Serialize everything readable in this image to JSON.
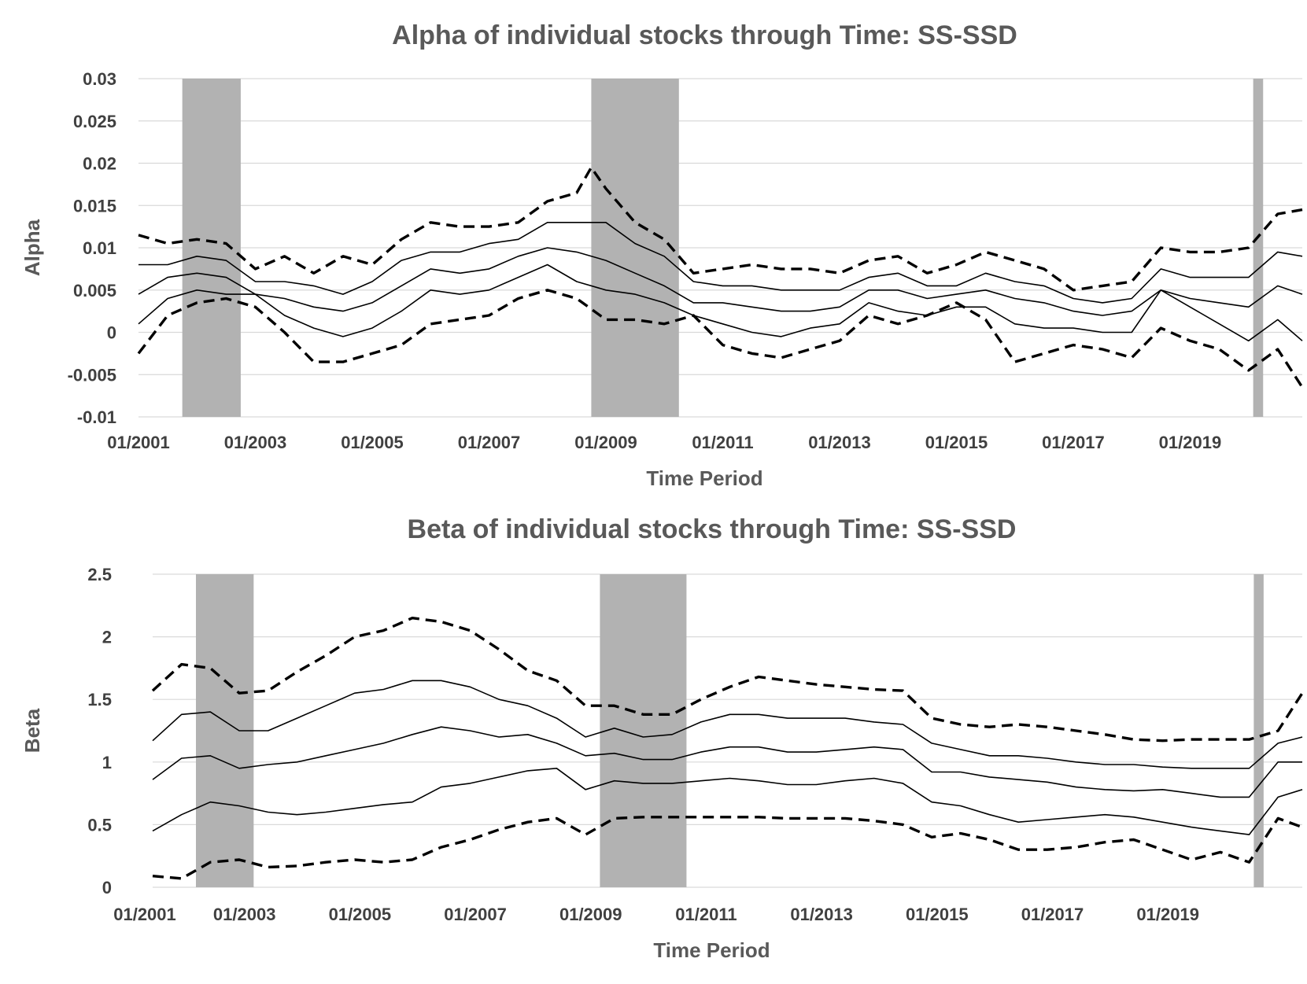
{
  "chart_data": [
    {
      "type": "line",
      "title": "Alpha of individual stocks through Time: SS-SSD",
      "xlabel": "Time Period",
      "ylabel": "Alpha",
      "ylim": [
        -0.01,
        0.03
      ],
      "yticks": [
        0.03,
        0.025,
        0.02,
        0.015,
        0.01,
        0.005,
        0,
        -0.005,
        -0.01
      ],
      "ytick_labels": [
        "0.03",
        "0.025",
        "0.02",
        "0.015",
        "0.01",
        "0.005",
        "0",
        "-0.005",
        "-0.01"
      ],
      "xlim": [
        2001.0,
        2020.92
      ],
      "xticks": [
        2001,
        2003,
        2005,
        2007,
        2009,
        2011,
        2013,
        2015,
        2017,
        2019
      ],
      "xtick_labels": [
        "01/2001",
        "01/2003",
        "01/2005",
        "01/2007",
        "01/2009",
        "01/2011",
        "01/2013",
        "01/2015",
        "01/2017",
        "01/2019"
      ],
      "grid": true,
      "recession_shading": [
        [
          2001.75,
          2002.75
        ],
        [
          2008.75,
          2010.25
        ],
        [
          2020.08,
          2020.25
        ]
      ],
      "series": [
        {
          "name": "upper dashed",
          "style": "dashed",
          "x": [
            2001.0,
            2001.5,
            2002.0,
            2002.5,
            2003.0,
            2003.5,
            2004.0,
            2004.5,
            2005.0,
            2005.5,
            2006.0,
            2006.5,
            2007.0,
            2007.5,
            2008.0,
            2008.5,
            2008.75,
            2009.0,
            2009.5,
            2010.0,
            2010.5,
            2011.0,
            2011.5,
            2012.0,
            2012.5,
            2013.0,
            2013.5,
            2014.0,
            2014.5,
            2015.0,
            2015.5,
            2016.0,
            2016.5,
            2017.0,
            2017.5,
            2018.0,
            2018.5,
            2019.0,
            2019.5,
            2020.0,
            2020.5,
            2020.92
          ],
          "values": [
            0.0115,
            0.0105,
            0.011,
            0.0105,
            0.0075,
            0.009,
            0.007,
            0.009,
            0.008,
            0.011,
            0.013,
            0.0125,
            0.0125,
            0.013,
            0.0155,
            0.0165,
            0.0195,
            0.017,
            0.013,
            0.011,
            0.007,
            0.0075,
            0.008,
            0.0075,
            0.0075,
            0.007,
            0.0085,
            0.009,
            0.007,
            0.008,
            0.0095,
            0.0085,
            0.0075,
            0.005,
            0.0055,
            0.006,
            0.01,
            0.0095,
            0.0095,
            0.01,
            0.014,
            0.0145
          ]
        },
        {
          "name": "upper solid",
          "style": "solid",
          "x": [
            2001.0,
            2001.5,
            2002.0,
            2002.5,
            2003.0,
            2003.5,
            2004.0,
            2004.5,
            2005.0,
            2005.5,
            2006.0,
            2006.5,
            2007.0,
            2007.5,
            2008.0,
            2008.5,
            2009.0,
            2009.5,
            2010.0,
            2010.5,
            2011.0,
            2011.5,
            2012.0,
            2012.5,
            2013.0,
            2013.5,
            2014.0,
            2014.5,
            2015.0,
            2015.5,
            2016.0,
            2016.5,
            2017.0,
            2017.5,
            2018.0,
            2018.5,
            2019.0,
            2019.5,
            2020.0,
            2020.5,
            2020.92
          ],
          "values": [
            0.008,
            0.008,
            0.009,
            0.0085,
            0.006,
            0.006,
            0.0055,
            0.0045,
            0.006,
            0.0085,
            0.0095,
            0.0095,
            0.0105,
            0.011,
            0.013,
            0.013,
            0.013,
            0.0105,
            0.009,
            0.006,
            0.0055,
            0.0055,
            0.005,
            0.005,
            0.005,
            0.0065,
            0.007,
            0.0055,
            0.0055,
            0.007,
            0.006,
            0.0055,
            0.004,
            0.0035,
            0.004,
            0.0075,
            0.0065,
            0.0065,
            0.0065,
            0.0095,
            0.009
          ]
        },
        {
          "name": "median solid",
          "style": "solid",
          "x": [
            2001.0,
            2001.5,
            2002.0,
            2002.5,
            2003.0,
            2003.5,
            2004.0,
            2004.5,
            2005.0,
            2005.5,
            2006.0,
            2006.5,
            2007.0,
            2007.5,
            2008.0,
            2008.5,
            2009.0,
            2009.5,
            2010.0,
            2010.5,
            2011.0,
            2011.5,
            2012.0,
            2012.5,
            2013.0,
            2013.5,
            2014.0,
            2014.5,
            2015.0,
            2015.5,
            2016.0,
            2016.5,
            2017.0,
            2017.5,
            2018.0,
            2018.5,
            2019.0,
            2019.5,
            2020.0,
            2020.5,
            2020.92
          ],
          "values": [
            0.0045,
            0.0065,
            0.007,
            0.0065,
            0.0045,
            0.004,
            0.003,
            0.0025,
            0.0035,
            0.0055,
            0.0075,
            0.007,
            0.0075,
            0.009,
            0.01,
            0.0095,
            0.0085,
            0.007,
            0.0055,
            0.0035,
            0.0035,
            0.003,
            0.0025,
            0.0025,
            0.003,
            0.005,
            0.005,
            0.004,
            0.0045,
            0.005,
            0.004,
            0.0035,
            0.0025,
            0.002,
            0.0025,
            0.005,
            0.004,
            0.0035,
            0.003,
            0.0055,
            0.0045
          ]
        },
        {
          "name": "lower solid",
          "style": "solid",
          "x": [
            2001.0,
            2001.5,
            2002.0,
            2002.5,
            2003.0,
            2003.5,
            2004.0,
            2004.5,
            2005.0,
            2005.5,
            2006.0,
            2006.5,
            2007.0,
            2007.5,
            2008.0,
            2008.5,
            2009.0,
            2009.5,
            2010.0,
            2010.5,
            2011.0,
            2011.5,
            2012.0,
            2012.5,
            2013.0,
            2013.5,
            2014.0,
            2014.5,
            2015.0,
            2015.5,
            2016.0,
            2016.5,
            2017.0,
            2017.5,
            2018.0,
            2018.5,
            2019.0,
            2019.5,
            2020.0,
            2020.5,
            2020.92
          ],
          "values": [
            0.001,
            0.004,
            0.005,
            0.0045,
            0.0045,
            0.002,
            0.0005,
            -0.0005,
            0.0005,
            0.0025,
            0.005,
            0.0045,
            0.005,
            0.0065,
            0.008,
            0.006,
            0.005,
            0.0045,
            0.0035,
            0.002,
            0.001,
            0.0,
            -0.0005,
            0.0005,
            0.001,
            0.0035,
            0.0025,
            0.002,
            0.003,
            0.003,
            0.001,
            0.0005,
            0.0005,
            0.0,
            0.0,
            0.005,
            0.003,
            0.001,
            -0.001,
            0.0015,
            -0.001
          ]
        },
        {
          "name": "lower dashed",
          "style": "dashed",
          "x": [
            2001.0,
            2001.5,
            2002.0,
            2002.5,
            2003.0,
            2003.5,
            2004.0,
            2004.5,
            2005.0,
            2005.5,
            2006.0,
            2006.5,
            2007.0,
            2007.5,
            2008.0,
            2008.5,
            2009.0,
            2009.5,
            2010.0,
            2010.5,
            2011.0,
            2011.5,
            2012.0,
            2012.5,
            2013.0,
            2013.5,
            2014.0,
            2014.5,
            2015.0,
            2015.5,
            2016.0,
            2016.5,
            2017.0,
            2017.5,
            2018.0,
            2018.5,
            2019.0,
            2019.5,
            2020.0,
            2020.5,
            2020.92
          ],
          "values": [
            -0.0025,
            0.002,
            0.0035,
            0.004,
            0.003,
            0.0,
            -0.0035,
            -0.0035,
            -0.0025,
            -0.0015,
            0.001,
            0.0015,
            0.002,
            0.004,
            0.005,
            0.004,
            0.0015,
            0.0015,
            0.001,
            0.002,
            -0.0015,
            -0.0025,
            -0.003,
            -0.002,
            -0.001,
            0.002,
            0.001,
            0.002,
            0.0035,
            0.0015,
            -0.0035,
            -0.0025,
            -0.0015,
            -0.002,
            -0.003,
            0.0005,
            -0.001,
            -0.002,
            -0.0045,
            -0.002,
            -0.0065
          ]
        }
      ]
    },
    {
      "type": "line",
      "title": "Beta of individual stocks through Time: SS-SSD",
      "xlabel": "Time Period",
      "ylabel": "Beta",
      "ylim": [
        0,
        2.5
      ],
      "yticks": [
        2.5,
        2,
        1.5,
        1,
        0.5,
        0
      ],
      "ytick_labels": [
        "2.5",
        "2",
        "1.5",
        "1",
        "0.5",
        "0"
      ],
      "xlim": [
        2001.0,
        2020.92
      ],
      "xticks": [
        2001,
        2003,
        2005,
        2007,
        2009,
        2011,
        2013,
        2015,
        2017,
        2019
      ],
      "xtick_labels": [
        "01/2001",
        "01/2003",
        "01/2005",
        "01/2007",
        "01/2009",
        "01/2011",
        "01/2013",
        "01/2015",
        "01/2017",
        "01/2019"
      ],
      "grid": true,
      "recession_shading": [
        [
          2001.75,
          2002.75
        ],
        [
          2008.75,
          2010.25
        ],
        [
          2020.08,
          2020.25
        ]
      ],
      "series": [
        {
          "name": "upper dashed",
          "style": "dashed",
          "x": [
            2001.0,
            2001.5,
            2002.0,
            2002.5,
            2003.0,
            2003.5,
            2004.0,
            2004.5,
            2005.0,
            2005.5,
            2006.0,
            2006.5,
            2007.0,
            2007.5,
            2008.0,
            2008.5,
            2009.0,
            2009.5,
            2010.0,
            2010.5,
            2011.0,
            2011.5,
            2012.0,
            2012.5,
            2013.0,
            2013.5,
            2014.0,
            2014.5,
            2015.0,
            2015.5,
            2016.0,
            2016.5,
            2017.0,
            2017.5,
            2018.0,
            2018.5,
            2019.0,
            2019.5,
            2020.0,
            2020.5,
            2020.92
          ],
          "values": [
            1.57,
            1.78,
            1.75,
            1.55,
            1.57,
            1.72,
            1.85,
            2.0,
            2.05,
            2.15,
            2.12,
            2.05,
            1.9,
            1.73,
            1.65,
            1.45,
            1.45,
            1.38,
            1.38,
            1.5,
            1.6,
            1.68,
            1.65,
            1.62,
            1.6,
            1.58,
            1.57,
            1.35,
            1.3,
            1.28,
            1.3,
            1.28,
            1.25,
            1.22,
            1.18,
            1.17,
            1.18,
            1.18,
            1.18,
            1.25,
            1.55
          ]
        },
        {
          "name": "upper solid",
          "style": "solid",
          "x": [
            2001.0,
            2001.5,
            2002.0,
            2002.5,
            2003.0,
            2003.5,
            2004.0,
            2004.5,
            2005.0,
            2005.5,
            2006.0,
            2006.5,
            2007.0,
            2007.5,
            2008.0,
            2008.5,
            2009.0,
            2009.5,
            2010.0,
            2010.5,
            2011.0,
            2011.5,
            2012.0,
            2012.5,
            2013.0,
            2013.5,
            2014.0,
            2014.5,
            2015.0,
            2015.5,
            2016.0,
            2016.5,
            2017.0,
            2017.5,
            2018.0,
            2018.5,
            2019.0,
            2019.5,
            2020.0,
            2020.5,
            2020.92
          ],
          "values": [
            1.17,
            1.38,
            1.4,
            1.25,
            1.25,
            1.35,
            1.45,
            1.55,
            1.58,
            1.65,
            1.65,
            1.6,
            1.5,
            1.45,
            1.35,
            1.2,
            1.27,
            1.2,
            1.22,
            1.32,
            1.38,
            1.38,
            1.35,
            1.35,
            1.35,
            1.32,
            1.3,
            1.15,
            1.1,
            1.05,
            1.05,
            1.03,
            1.0,
            0.98,
            0.98,
            0.96,
            0.95,
            0.95,
            0.95,
            1.15,
            1.2
          ]
        },
        {
          "name": "median solid",
          "style": "solid",
          "x": [
            2001.0,
            2001.5,
            2002.0,
            2002.5,
            2003.0,
            2003.5,
            2004.0,
            2004.5,
            2005.0,
            2005.5,
            2006.0,
            2006.5,
            2007.0,
            2007.5,
            2008.0,
            2008.5,
            2009.0,
            2009.5,
            2010.0,
            2010.5,
            2011.0,
            2011.5,
            2012.0,
            2012.5,
            2013.0,
            2013.5,
            2014.0,
            2014.5,
            2015.0,
            2015.5,
            2016.0,
            2016.5,
            2017.0,
            2017.5,
            2018.0,
            2018.5,
            2019.0,
            2019.5,
            2020.0,
            2020.5,
            2020.92
          ],
          "values": [
            0.86,
            1.03,
            1.05,
            0.95,
            0.98,
            1.0,
            1.05,
            1.1,
            1.15,
            1.22,
            1.28,
            1.25,
            1.2,
            1.22,
            1.15,
            1.05,
            1.07,
            1.02,
            1.02,
            1.08,
            1.12,
            1.12,
            1.08,
            1.08,
            1.1,
            1.12,
            1.1,
            0.92,
            0.92,
            0.88,
            0.86,
            0.84,
            0.8,
            0.78,
            0.77,
            0.78,
            0.75,
            0.72,
            0.72,
            1.0,
            1.0
          ]
        },
        {
          "name": "lower solid",
          "style": "solid",
          "x": [
            2001.0,
            2001.5,
            2002.0,
            2002.5,
            2003.0,
            2003.5,
            2004.0,
            2004.5,
            2005.0,
            2005.5,
            2006.0,
            2006.5,
            2007.0,
            2007.5,
            2008.0,
            2008.5,
            2009.0,
            2009.5,
            2010.0,
            2010.5,
            2011.0,
            2011.5,
            2012.0,
            2012.5,
            2013.0,
            2013.5,
            2014.0,
            2014.5,
            2015.0,
            2015.5,
            2016.0,
            2016.5,
            2017.0,
            2017.5,
            2018.0,
            2018.5,
            2019.0,
            2019.5,
            2020.0,
            2020.5,
            2020.92
          ],
          "values": [
            0.45,
            0.58,
            0.68,
            0.65,
            0.6,
            0.58,
            0.6,
            0.63,
            0.66,
            0.68,
            0.8,
            0.83,
            0.88,
            0.93,
            0.95,
            0.78,
            0.85,
            0.83,
            0.83,
            0.85,
            0.87,
            0.85,
            0.82,
            0.82,
            0.85,
            0.87,
            0.83,
            0.68,
            0.65,
            0.58,
            0.52,
            0.54,
            0.56,
            0.58,
            0.56,
            0.52,
            0.48,
            0.45,
            0.42,
            0.72,
            0.78
          ]
        },
        {
          "name": "lower dashed",
          "style": "dashed",
          "x": [
            2001.0,
            2001.5,
            2002.0,
            2002.5,
            2003.0,
            2003.5,
            2004.0,
            2004.5,
            2005.0,
            2005.5,
            2006.0,
            2006.5,
            2007.0,
            2007.5,
            2008.0,
            2008.5,
            2009.0,
            2009.5,
            2010.0,
            2010.5,
            2011.0,
            2011.5,
            2012.0,
            2012.5,
            2013.0,
            2013.5,
            2014.0,
            2014.5,
            2015.0,
            2015.5,
            2016.0,
            2016.5,
            2017.0,
            2017.5,
            2018.0,
            2018.5,
            2019.0,
            2019.5,
            2020.0,
            2020.5,
            2020.92
          ],
          "values": [
            0.09,
            0.07,
            0.2,
            0.22,
            0.16,
            0.17,
            0.2,
            0.22,
            0.2,
            0.22,
            0.32,
            0.38,
            0.46,
            0.52,
            0.55,
            0.42,
            0.55,
            0.56,
            0.56,
            0.56,
            0.56,
            0.56,
            0.55,
            0.55,
            0.55,
            0.53,
            0.5,
            0.4,
            0.43,
            0.38,
            0.3,
            0.3,
            0.32,
            0.36,
            0.38,
            0.3,
            0.22,
            0.28,
            0.2,
            0.55,
            0.48
          ]
        }
      ]
    }
  ]
}
